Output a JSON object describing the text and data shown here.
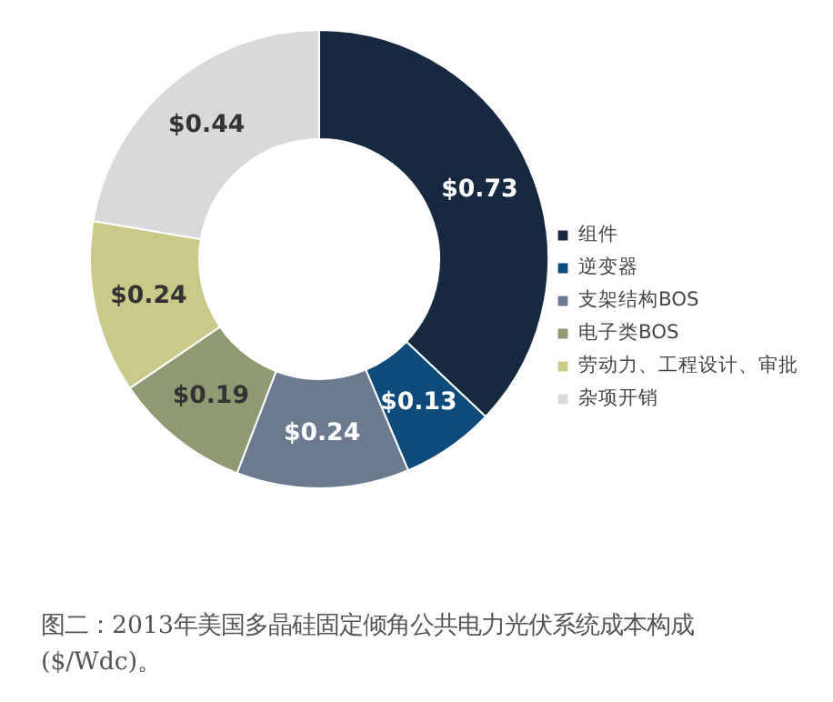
{
  "chart_data": {
    "type": "donut",
    "categories": [
      "组件",
      "逆变器",
      "支架结构BOS",
      "电子类BOS",
      "劳动力、工程设计、审批",
      "杂项开销"
    ],
    "values": [
      0.73,
      0.13,
      0.24,
      0.19,
      0.24,
      0.44
    ],
    "colors": [
      "#172940",
      "#0e4a7a",
      "#6b7a8f",
      "#8f9a72",
      "#c9c98a",
      "#d9d9d9"
    ],
    "value_labels": [
      "$0.73",
      "$0.13",
      "$0.24",
      "$0.19",
      "$0.24",
      "$0.44"
    ],
    "legend": "right",
    "annotations": [
      "图二：2013年美国多晶硅固定倾角公共电力光伏系统成本构成($/Wdc)。"
    ]
  }
}
